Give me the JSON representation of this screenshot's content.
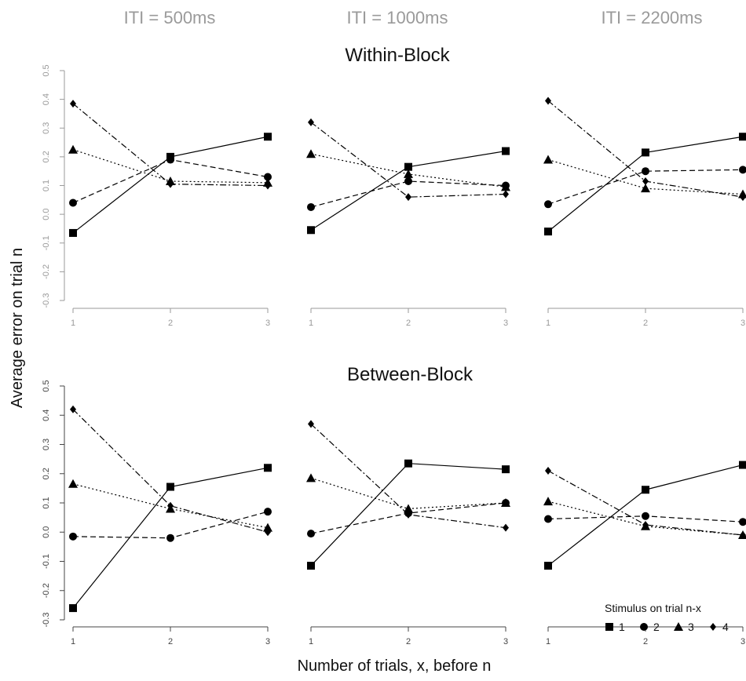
{
  "figure": {
    "column_titles": [
      "ITI = 500ms",
      "ITI = 1000ms",
      "ITI = 2200ms"
    ],
    "row_titles": [
      "Within-Block",
      "Between-Block"
    ],
    "ylabel": "Average error on trial n",
    "xlabel": "Number of trials, x, before n",
    "legend_title": "Stimulus on trial n-x",
    "legend_entries": [
      "1",
      "2",
      "3",
      "4"
    ],
    "colors": {
      "series": "#000000",
      "axis_light": "#9a9a9a",
      "axis_dark": "#444444"
    }
  },
  "chart_data": [
    {
      "type": "line",
      "panel": "Within-Block / ITI = 500ms",
      "x": [
        1,
        2,
        3
      ],
      "xticks": [
        "1",
        "2",
        "3"
      ],
      "ylim": [
        -0.3,
        0.5
      ],
      "yticks": [
        "-0.3",
        "-0.2",
        "-0.1",
        "0.0",
        "0.1",
        "0.2",
        "0.3",
        "0.4",
        "0.5"
      ],
      "series": [
        {
          "name": "1",
          "marker": "square",
          "values": [
            -0.065,
            0.2,
            0.27
          ]
        },
        {
          "name": "2",
          "marker": "circle",
          "values": [
            0.04,
            0.19,
            0.13
          ]
        },
        {
          "name": "3",
          "marker": "triangle",
          "values": [
            0.225,
            0.115,
            0.11
          ]
        },
        {
          "name": "4",
          "marker": "diamond",
          "values": [
            0.385,
            0.105,
            0.1
          ]
        }
      ]
    },
    {
      "type": "line",
      "panel": "Within-Block / ITI = 1000ms",
      "x": [
        1,
        2,
        3
      ],
      "xticks": [
        "1",
        "2",
        "3"
      ],
      "ylim": [
        -0.3,
        0.5
      ],
      "series": [
        {
          "name": "1",
          "marker": "square",
          "values": [
            -0.055,
            0.165,
            0.22
          ]
        },
        {
          "name": "2",
          "marker": "circle",
          "values": [
            0.025,
            0.115,
            0.1
          ]
        },
        {
          "name": "3",
          "marker": "triangle",
          "values": [
            0.21,
            0.14,
            0.095
          ]
        },
        {
          "name": "4",
          "marker": "diamond",
          "values": [
            0.32,
            0.06,
            0.07
          ]
        }
      ]
    },
    {
      "type": "line",
      "panel": "Within-Block / ITI = 2200ms",
      "x": [
        1,
        2,
        3
      ],
      "xticks": [
        "1",
        "2",
        "3"
      ],
      "ylim": [
        -0.3,
        0.5
      ],
      "series": [
        {
          "name": "1",
          "marker": "square",
          "values": [
            -0.06,
            0.215,
            0.27
          ]
        },
        {
          "name": "2",
          "marker": "circle",
          "values": [
            0.035,
            0.15,
            0.155
          ]
        },
        {
          "name": "3",
          "marker": "triangle",
          "values": [
            0.19,
            0.09,
            0.07
          ]
        },
        {
          "name": "4",
          "marker": "diamond",
          "values": [
            0.395,
            0.115,
            0.06
          ]
        }
      ]
    },
    {
      "type": "line",
      "panel": "Between-Block / ITI = 500ms",
      "x": [
        1,
        2,
        3
      ],
      "xticks": [
        "1",
        "2",
        "3"
      ],
      "ylim": [
        -0.3,
        0.5
      ],
      "yticks": [
        "-0.3",
        "-0.2",
        "-0.1",
        "0.0",
        "0.1",
        "0.2",
        "0.3",
        "0.4",
        "0.5"
      ],
      "series": [
        {
          "name": "1",
          "marker": "square",
          "values": [
            -0.26,
            0.155,
            0.22
          ]
        },
        {
          "name": "2",
          "marker": "circle",
          "values": [
            -0.015,
            -0.02,
            0.07
          ]
        },
        {
          "name": "3",
          "marker": "triangle",
          "values": [
            0.165,
            0.08,
            0.015
          ]
        },
        {
          "name": "4",
          "marker": "diamond",
          "values": [
            0.42,
            0.09,
            0.0
          ]
        }
      ]
    },
    {
      "type": "line",
      "panel": "Between-Block / ITI = 1000ms",
      "x": [
        1,
        2,
        3
      ],
      "xticks": [
        "1",
        "2",
        "3"
      ],
      "ylim": [
        -0.3,
        0.5
      ],
      "series": [
        {
          "name": "1",
          "marker": "square",
          "values": [
            -0.115,
            0.235,
            0.215
          ]
        },
        {
          "name": "2",
          "marker": "circle",
          "values": [
            -0.005,
            0.065,
            0.1
          ]
        },
        {
          "name": "3",
          "marker": "triangle",
          "values": [
            0.185,
            0.08,
            0.1
          ]
        },
        {
          "name": "4",
          "marker": "diamond",
          "values": [
            0.37,
            0.06,
            0.015
          ]
        }
      ]
    },
    {
      "type": "line",
      "panel": "Between-Block / ITI = 2200ms",
      "x": [
        1,
        2,
        3
      ],
      "xticks": [
        "1",
        "2",
        "3"
      ],
      "ylim": [
        -0.3,
        0.5
      ],
      "series": [
        {
          "name": "1",
          "marker": "square",
          "values": [
            -0.115,
            0.145,
            0.23
          ]
        },
        {
          "name": "2",
          "marker": "circle",
          "values": [
            0.045,
            0.055,
            0.035
          ]
        },
        {
          "name": "3",
          "marker": "triangle",
          "values": [
            0.105,
            0.02,
            -0.01
          ]
        },
        {
          "name": "4",
          "marker": "diamond",
          "values": [
            0.21,
            0.025,
            -0.01
          ]
        }
      ]
    }
  ]
}
